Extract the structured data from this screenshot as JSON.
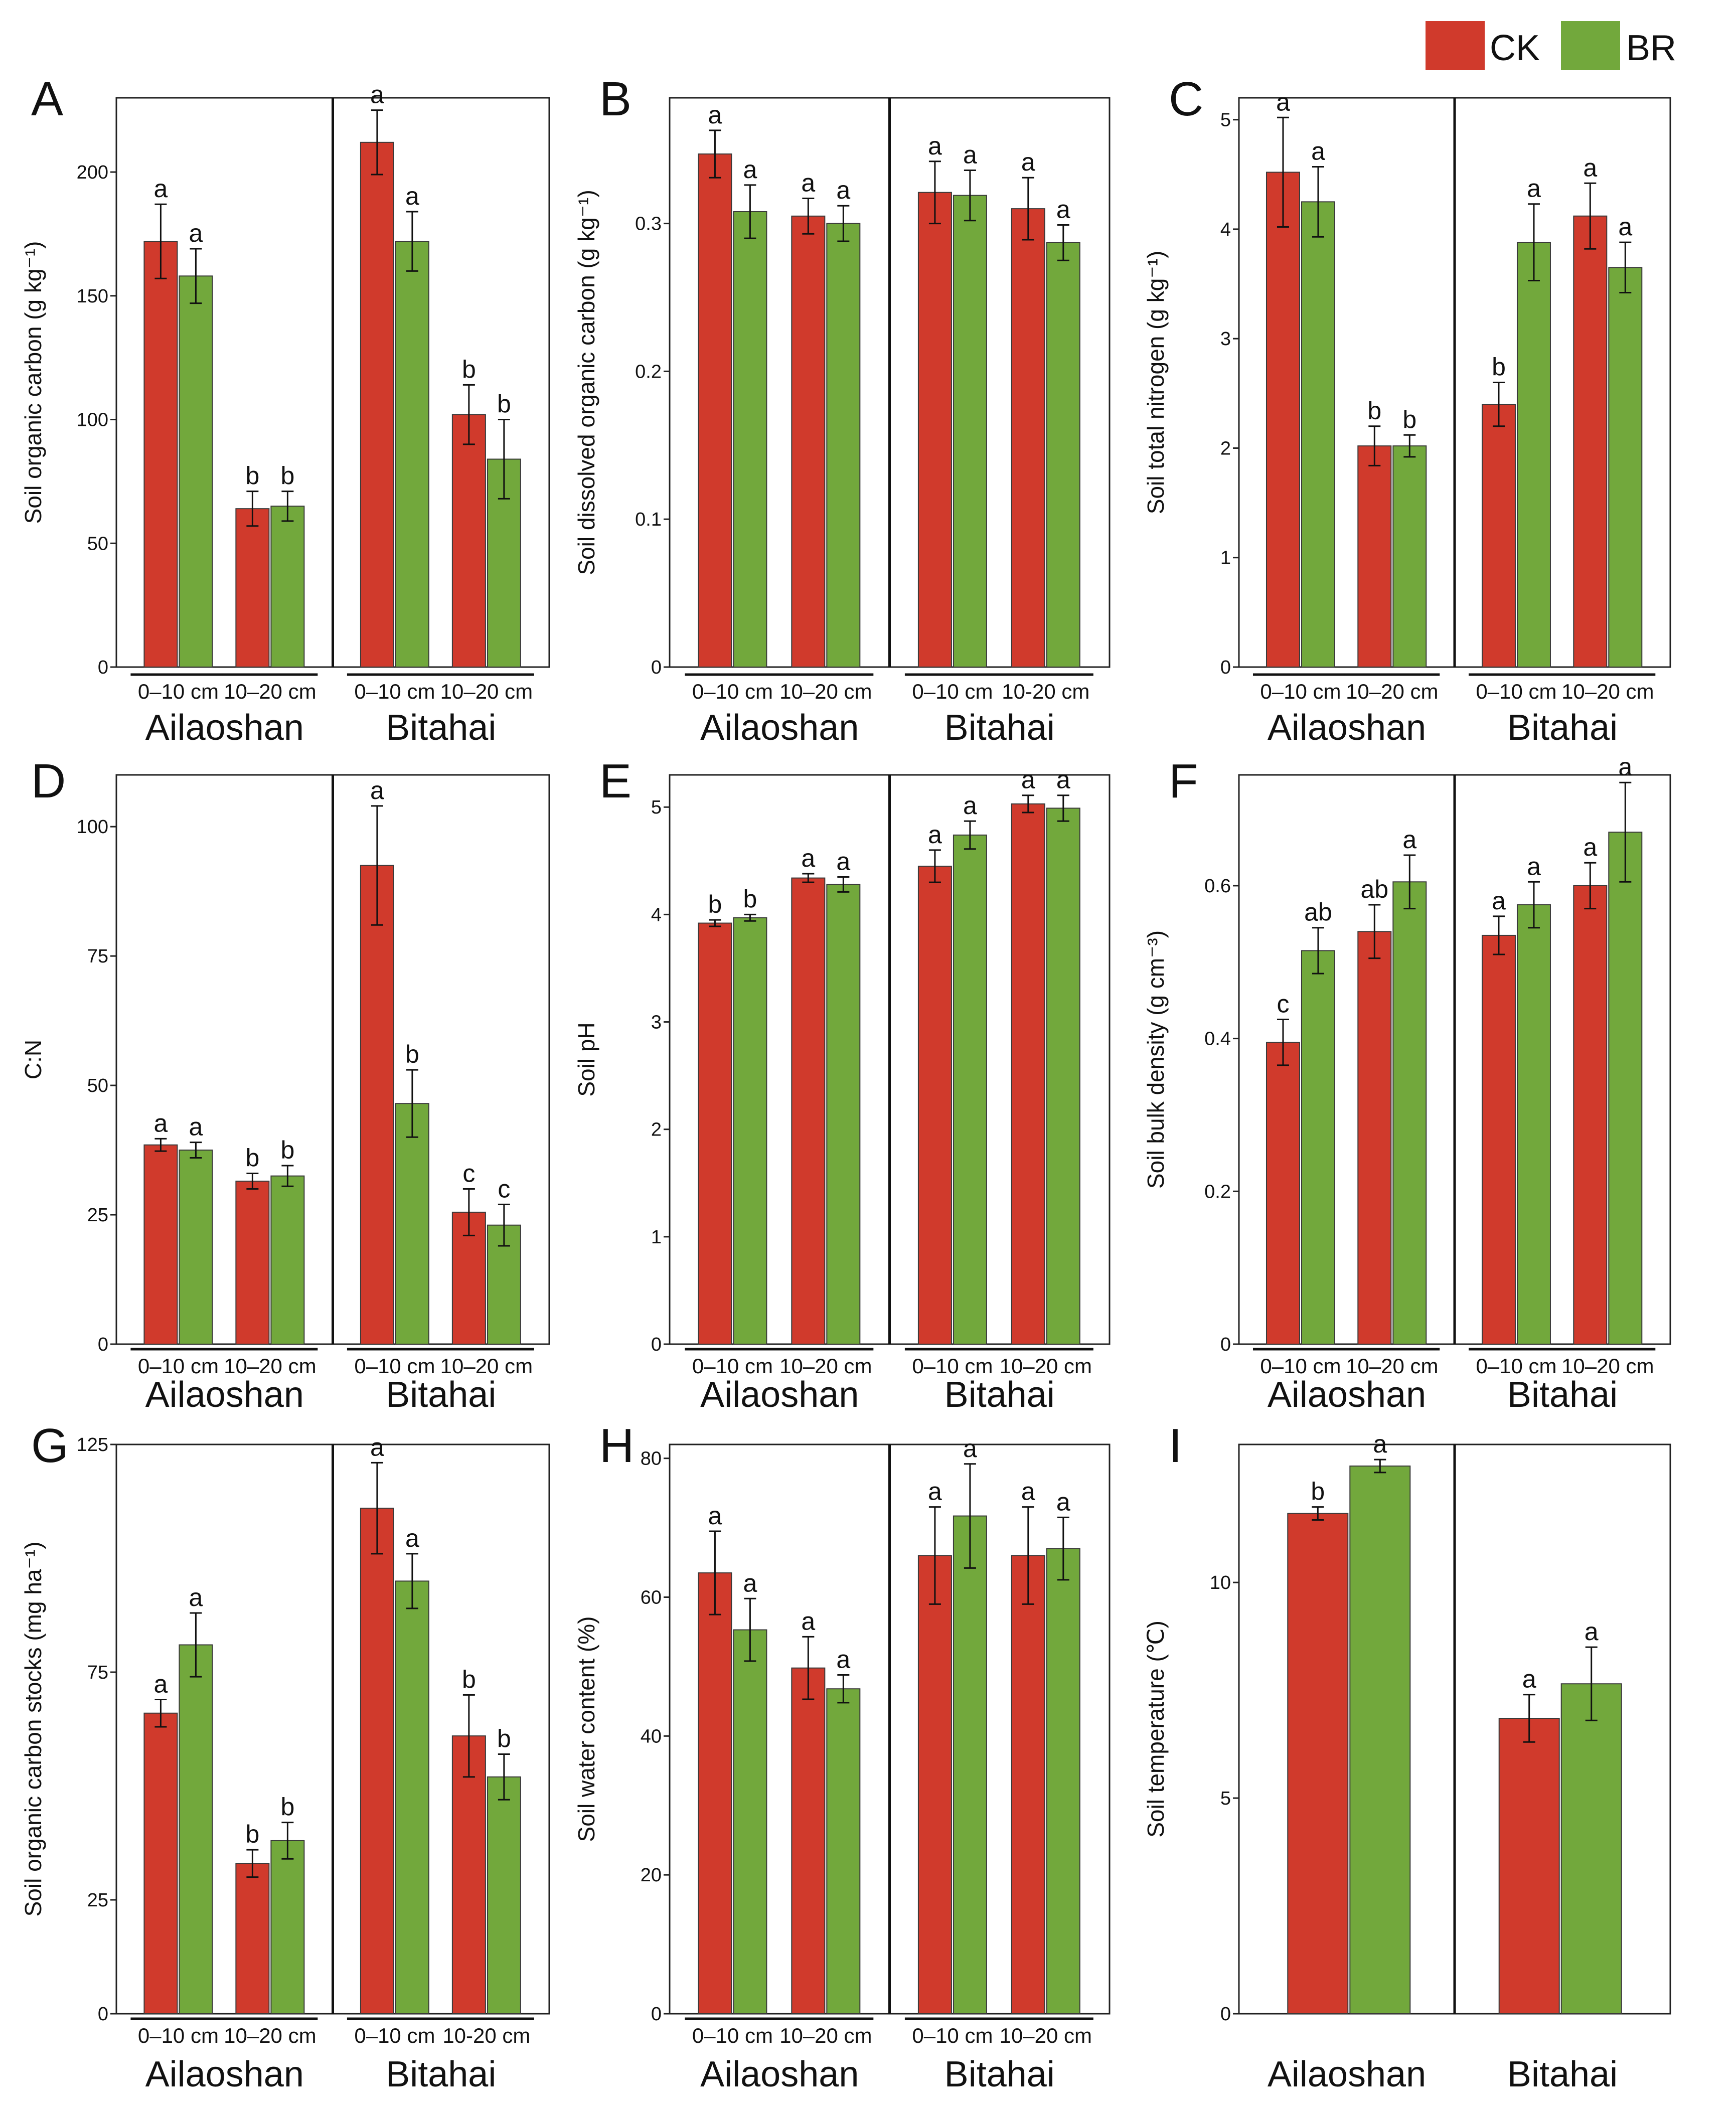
{
  "legend": [
    {
      "label": "CK",
      "color": "#d03a2c"
    },
    {
      "label": "BR",
      "color": "#72a83c"
    }
  ],
  "chart_data": [
    {
      "panel": "A",
      "type": "bar",
      "ylabel": "Soil organic carbon  (g kg⁻¹)",
      "ylim": [
        0,
        230
      ],
      "yticks": [
        0,
        50,
        100,
        150,
        200
      ],
      "sites": [
        "Ailaoshan",
        "Bitahai"
      ],
      "depths": [
        [
          "0–10 cm",
          "10–20 cm"
        ],
        [
          "0–10 cm",
          "10–20 cm"
        ]
      ],
      "series": [
        {
          "name": "CK",
          "values": [
            172,
            64,
            212,
            102
          ],
          "errors": [
            15,
            7,
            13,
            12
          ],
          "letters": [
            "a",
            "b",
            "a",
            "b"
          ]
        },
        {
          "name": "BR",
          "values": [
            158,
            65,
            172,
            84
          ],
          "errors": [
            11,
            6,
            12,
            16
          ],
          "letters": [
            "a",
            "b",
            "a",
            "b"
          ]
        }
      ]
    },
    {
      "panel": "B",
      "type": "bar",
      "ylabel": "Soil dissolved organic carbon  (g kg⁻¹)",
      "ylim": [
        0,
        0.385
      ],
      "yticks": [
        0,
        0.1,
        0.2,
        0.3
      ],
      "ytick_labels": [
        "0",
        "0.1",
        "0.2",
        "0.3"
      ],
      "sites": [
        "Ailaoshan",
        "Bitahai"
      ],
      "depths": [
        [
          "0–10 cm",
          "10–20 cm"
        ],
        [
          "0–10 cm",
          "10-20 cm"
        ]
      ],
      "series": [
        {
          "name": "CK",
          "values": [
            0.347,
            0.305,
            0.321,
            0.31
          ],
          "errors": [
            0.016,
            0.012,
            0.021,
            0.021
          ],
          "letters": [
            "a",
            "a",
            "a",
            "a"
          ]
        },
        {
          "name": "BR",
          "values": [
            0.308,
            0.3,
            0.319,
            0.287
          ],
          "errors": [
            0.018,
            0.012,
            0.017,
            0.012
          ],
          "letters": [
            "a",
            "a",
            "a",
            "a"
          ]
        }
      ]
    },
    {
      "panel": "C",
      "type": "bar",
      "ylabel": "Soil total nitrogen  (g kg⁻¹)",
      "ylim": [
        0,
        5.2
      ],
      "yticks": [
        0,
        1,
        2,
        3,
        4,
        5
      ],
      "sites": [
        "Ailaoshan",
        "Bitahai"
      ],
      "depths": [
        [
          "0–10 cm",
          "10–20 cm"
        ],
        [
          "0–10 cm",
          "10–20 cm"
        ]
      ],
      "series": [
        {
          "name": "CK",
          "values": [
            4.52,
            2.02,
            2.4,
            4.12
          ],
          "errors": [
            0.5,
            0.18,
            0.2,
            0.3
          ],
          "letters": [
            "a",
            "b",
            "b",
            "a"
          ]
        },
        {
          "name": "BR",
          "values": [
            4.25,
            2.02,
            3.88,
            3.65
          ],
          "errors": [
            0.32,
            0.1,
            0.35,
            0.23
          ],
          "letters": [
            "a",
            "b",
            "a",
            "a"
          ]
        }
      ]
    },
    {
      "panel": "D",
      "type": "bar",
      "ylabel": "C:N",
      "ylim": [
        0,
        110
      ],
      "yticks": [
        0,
        25,
        50,
        75,
        100
      ],
      "sites": [
        "Ailaoshan",
        "Bitahai"
      ],
      "depths": [
        [
          "0–10 cm",
          "10–20 cm"
        ],
        [
          "0–10 cm",
          "10–20 cm"
        ]
      ],
      "series": [
        {
          "name": "CK",
          "values": [
            38.5,
            31.5,
            92.5,
            25.5
          ],
          "errors": [
            1.2,
            1.5,
            11.5,
            4.5
          ],
          "letters": [
            "a",
            "b",
            "a",
            "c"
          ]
        },
        {
          "name": "BR",
          "values": [
            37.5,
            32.5,
            46.5,
            23
          ],
          "errors": [
            1.5,
            2,
            6.5,
            4
          ],
          "letters": [
            "a",
            "b",
            "b",
            "c"
          ]
        }
      ]
    },
    {
      "panel": "E",
      "type": "bar",
      "ylabel": "Soil pH",
      "ylim": [
        0,
        5.3
      ],
      "yticks": [
        0,
        1,
        2,
        3,
        4,
        5
      ],
      "sites": [
        "Ailaoshan",
        "Bitahai"
      ],
      "depths": [
        [
          "0–10 cm",
          "10–20 cm"
        ],
        [
          "0–10 cm",
          "10–20 cm"
        ]
      ],
      "series": [
        {
          "name": "CK",
          "values": [
            3.92,
            4.34,
            4.45,
            5.03
          ],
          "errors": [
            0.03,
            0.04,
            0.15,
            0.08
          ],
          "letters": [
            "b",
            "a",
            "a",
            "a"
          ]
        },
        {
          "name": "BR",
          "values": [
            3.97,
            4.28,
            4.74,
            4.99
          ],
          "errors": [
            0.03,
            0.07,
            0.13,
            0.12
          ],
          "letters": [
            "b",
            "a",
            "a",
            "a"
          ]
        }
      ]
    },
    {
      "panel": "F",
      "type": "bar",
      "ylabel": "Soil bulk density  (g cm⁻³)",
      "ylim": [
        0,
        0.745
      ],
      "yticks": [
        0,
        0.2,
        0.4,
        0.6
      ],
      "ytick_labels": [
        "0",
        "0.2",
        "0.4",
        "0.6"
      ],
      "sites": [
        "Ailaoshan",
        "Bitahai"
      ],
      "depths": [
        [
          "0–10 cm",
          "10–20 cm"
        ],
        [
          "0–10 cm",
          "10–20 cm"
        ]
      ],
      "series": [
        {
          "name": "CK",
          "values": [
            0.395,
            0.54,
            0.535,
            0.6
          ],
          "errors": [
            0.03,
            0.035,
            0.025,
            0.03
          ],
          "letters": [
            "c",
            "ab",
            "a",
            "a"
          ]
        },
        {
          "name": "BR",
          "values": [
            0.515,
            0.605,
            0.575,
            0.67
          ],
          "errors": [
            0.03,
            0.035,
            0.03,
            0.065
          ],
          "letters": [
            "ab",
            "a",
            "a",
            "a"
          ]
        }
      ]
    },
    {
      "panel": "G",
      "type": "bar",
      "ylabel": "Soil organic carbon stocks (mg ha⁻¹)",
      "ylim": [
        0,
        125
      ],
      "yticks": [
        0,
        25,
        75,
        125
      ],
      "sites": [
        "Ailaoshan",
        "Bitahai"
      ],
      "depths": [
        [
          "0–10 cm",
          "10–20 cm"
        ],
        [
          "0–10 cm",
          "10-20 cm"
        ]
      ],
      "series": [
        {
          "name": "CK",
          "values": [
            66,
            33,
            111,
            61
          ],
          "errors": [
            3,
            3,
            10,
            9
          ],
          "letters": [
            "a",
            "b",
            "a",
            "b"
          ]
        },
        {
          "name": "BR",
          "values": [
            81,
            38,
            95,
            52
          ],
          "errors": [
            7,
            4,
            6,
            5
          ],
          "letters": [
            "a",
            "b",
            "a",
            "b"
          ]
        }
      ]
    },
    {
      "panel": "H",
      "type": "bar",
      "ylabel": "Soil water content (%)",
      "ylim": [
        0,
        82
      ],
      "yticks": [
        0,
        20,
        40,
        60,
        80
      ],
      "sites": [
        "Ailaoshan",
        "Bitahai"
      ],
      "depths": [
        [
          "0–10 cm",
          "10–20 cm"
        ],
        [
          "0–10 cm",
          "10–20 cm"
        ]
      ],
      "series": [
        {
          "name": "CK",
          "values": [
            63.5,
            49.8,
            66,
            66
          ],
          "errors": [
            6,
            4.5,
            7,
            7
          ],
          "letters": [
            "a",
            "a",
            "a",
            "a"
          ]
        },
        {
          "name": "BR",
          "values": [
            55.3,
            46.8,
            71.7,
            67
          ],
          "errors": [
            4.5,
            2,
            7.5,
            4.5
          ],
          "letters": [
            "a",
            "a",
            "a",
            "a"
          ]
        }
      ]
    },
    {
      "panel": "I",
      "type": "bar",
      "ylabel": "Soil temperature (℃)",
      "ylim": [
        0,
        13.2
      ],
      "yticks": [
        0,
        5,
        10
      ],
      "sites": [
        "Ailaoshan",
        "Bitahai"
      ],
      "depths": null,
      "series": [
        {
          "name": "CK",
          "values": [
            11.6,
            6.85
          ],
          "errors": [
            0.15,
            0.55
          ],
          "letters": [
            "b",
            "a"
          ]
        },
        {
          "name": "BR",
          "values": [
            12.7,
            7.65
          ],
          "errors": [
            0.15,
            0.85
          ],
          "letters": [
            "a",
            "a"
          ]
        }
      ]
    }
  ]
}
